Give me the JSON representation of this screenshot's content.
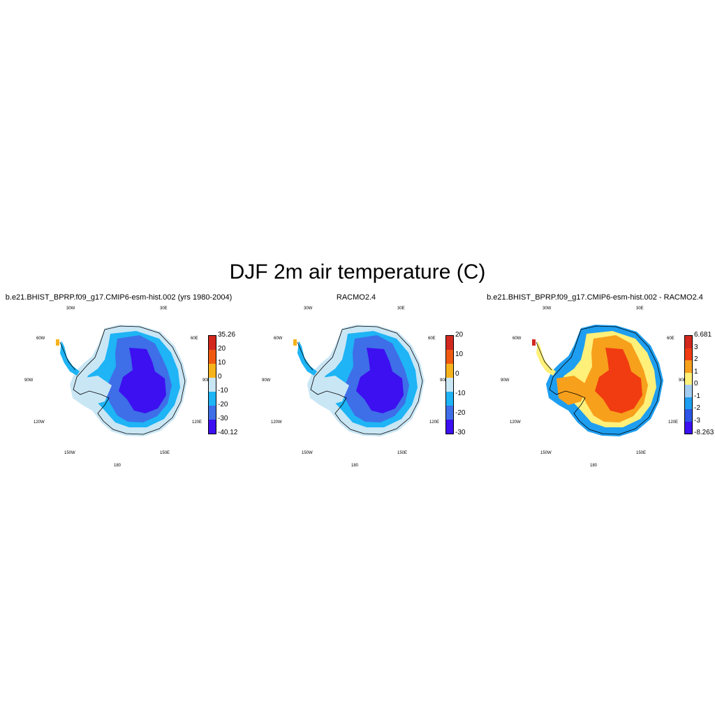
{
  "title": "DJF 2m air temperature (C)",
  "lon_labels": {
    "w30": "30W",
    "e30": "30E",
    "w60": "60W",
    "e60": "60E",
    "w90": "90W",
    "e90": "90E",
    "w120": "120W",
    "e120": "120E",
    "w150": "150W",
    "e150": "150E",
    "d180": "180"
  },
  "panels": [
    {
      "title": "b.e21.BHIST_BPRP.f09_g17.CMIP6-esm-hist.002 (yrs 1980-2004)",
      "colorbar": {
        "colors": [
          "#3c10f0",
          "#3e6ee8",
          "#1eb4f5",
          "#c9e6f5",
          "#f7b31c",
          "#f05a10",
          "#d2281e"
        ],
        "labels": [
          "35.26",
          "20",
          "10",
          "0",
          "-10",
          "-20",
          "-30",
          "-40.12"
        ]
      },
      "map": {
        "outer": "#c9e6f5",
        "mid": "#1eb4f5",
        "inner": "#3e6ee8",
        "core": "#3c10f0",
        "accent": "#f7b31c"
      }
    },
    {
      "title": "RACMO2.4",
      "colorbar": {
        "colors": [
          "#3c10f0",
          "#3e6ee8",
          "#1eb4f5",
          "#c9e6f5",
          "#f7b31c",
          "#f05a10",
          "#d2281e"
        ],
        "labels": [
          "20",
          "10",
          "0",
          "-10",
          "-20",
          "-30"
        ]
      },
      "map": {
        "outer": "#c9e6f5",
        "mid": "#1eb4f5",
        "inner": "#3e6ee8",
        "core": "#3c10f0",
        "accent": "#f7b31c"
      }
    },
    {
      "title": "b.e21.BHIST_BPRP.f09_g17.CMIP6-esm-hist.002 - RACMO2.4",
      "colorbar": {
        "colors": [
          "#3c10f0",
          "#2d55e6",
          "#1e9ef0",
          "#a3cdf0",
          "#fff07a",
          "#f7a01c",
          "#f03c10",
          "#d2281e"
        ],
        "labels": [
          "6.681",
          "3",
          "2",
          "1",
          "0",
          "-1",
          "-2",
          "-3",
          "-8.263"
        ]
      },
      "map": {
        "outer": "#1e9ef0",
        "mid": "#fff07a",
        "inner": "#f7a01c",
        "core": "#f03c10",
        "accent": "#d2281e"
      }
    }
  ]
}
